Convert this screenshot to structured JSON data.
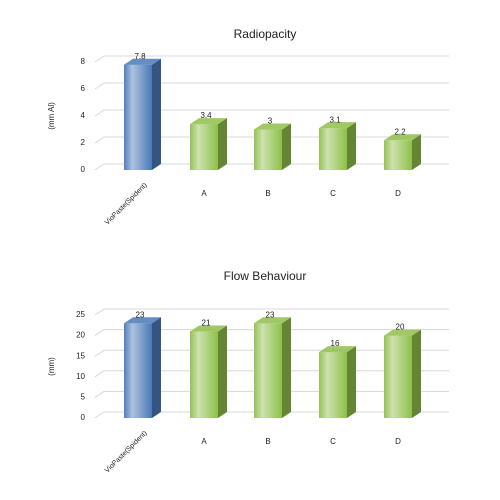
{
  "chart_data": [
    {
      "type": "bar",
      "title": "Radiopacity",
      "y_label": "(mm Al)",
      "categories": [
        "VioPaste(Spident)",
        "A",
        "B",
        "C",
        "D"
      ],
      "values": [
        7.8,
        3.4,
        3,
        3.1,
        2.2
      ],
      "colors": [
        "#4a78b8",
        "#8fbf4a",
        "#8fbf4a",
        "#8fbf4a",
        "#8fbf4a"
      ],
      "ylim": [
        0,
        8
      ],
      "yticks": [
        0,
        2,
        4,
        6,
        8
      ],
      "grid": true
    },
    {
      "type": "bar",
      "title": "Flow Behaviour",
      "y_label": "(mm)",
      "categories": [
        "VioPaste(Spident)",
        "A",
        "B",
        "C",
        "D"
      ],
      "values": [
        23,
        21,
        23,
        16,
        20
      ],
      "colors": [
        "#4a78b8",
        "#8fbf4a",
        "#8fbf4a",
        "#8fbf4a",
        "#8fbf4a"
      ],
      "ylim": [
        0,
        25
      ],
      "yticks": [
        0,
        5,
        10,
        15,
        20,
        25
      ],
      "grid": true
    }
  ]
}
